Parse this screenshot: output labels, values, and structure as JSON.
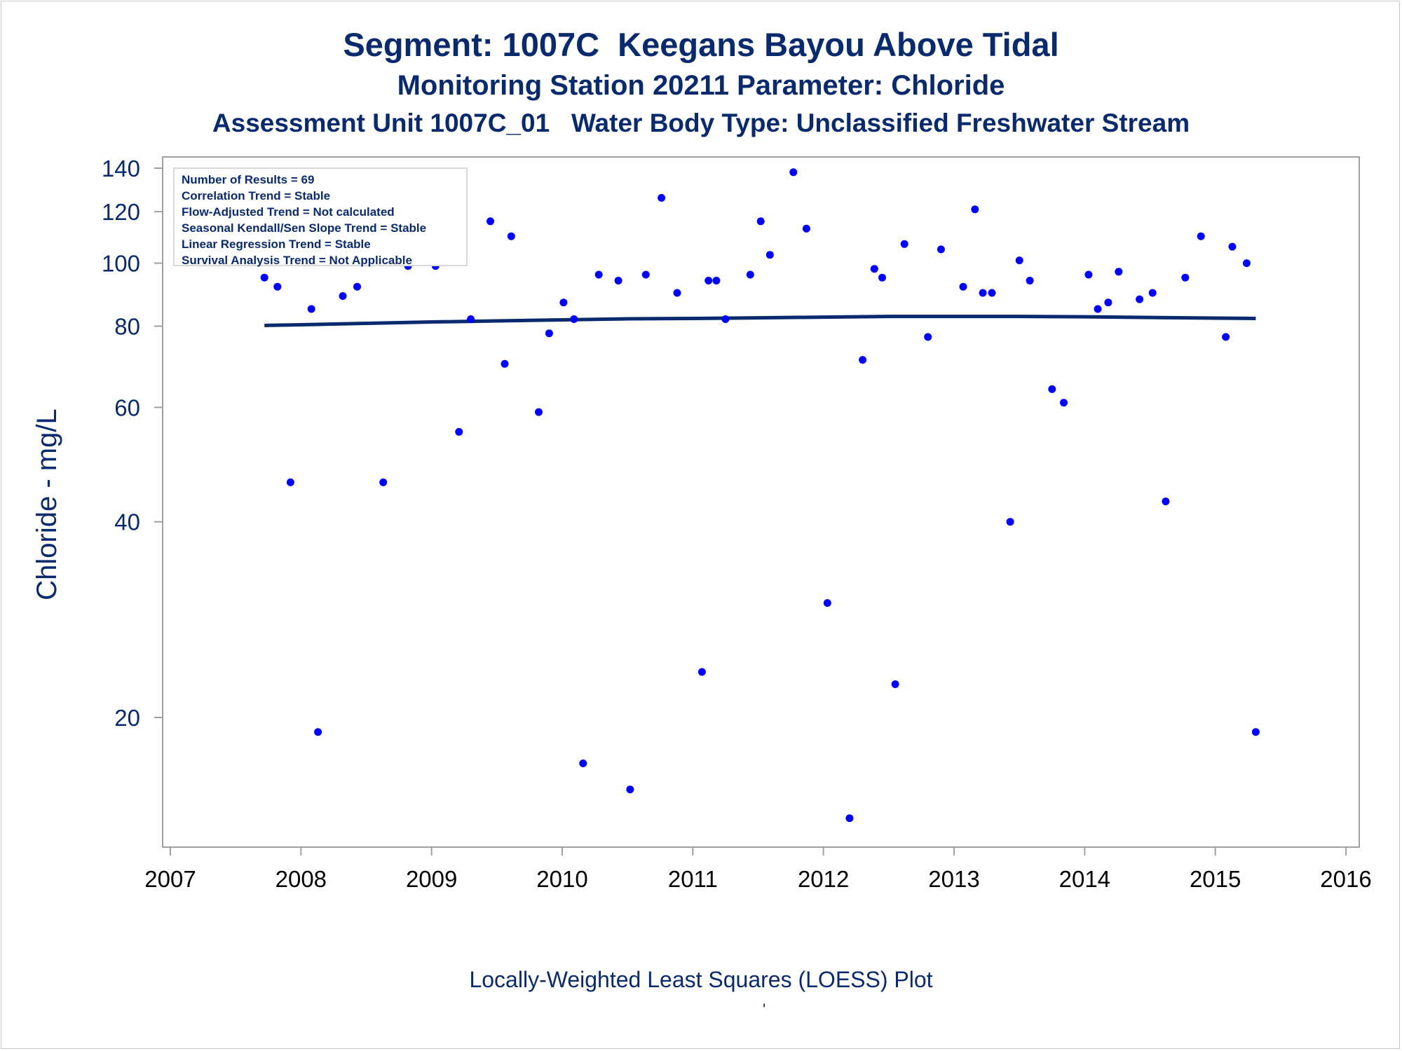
{
  "titles": {
    "line1": "Segment: 1007C  Keegans Bayou Above Tidal",
    "line2": "Monitoring Station 20211 Parameter: Chloride",
    "line3": "Assessment Unit 1007C_01   Water Body Type: Unclassified Freshwater Stream"
  },
  "stats_box": [
    "Number of Results = 69",
    "Correlation Trend = Stable",
    "Flow-Adjusted Trend = Not calculated",
    "Seasonal Kendall/Sen Slope Trend = Stable",
    "Linear Regression Trend = Stable",
    "Survival Analysis Trend = Not Applicable"
  ],
  "footer": {
    "caption": "Locally-Weighted Least Squares (LOESS) Plot",
    "mark": "'"
  },
  "colors": {
    "points": "#0000ff",
    "loess_line": "#0a2a6e",
    "text": "#0a2a6e",
    "axis": "#a0a0a0"
  },
  "chart_data": {
    "type": "scatter",
    "ylabel": "Chloride - mg/L",
    "xlabel": "",
    "y_scale": "log",
    "xlim": [
      2007,
      2016
    ],
    "ylim": [
      13,
      145
    ],
    "x_ticks": [
      "2007",
      "2008",
      "2009",
      "2010",
      "2011",
      "2012",
      "2013",
      "2014",
      "2015",
      "2016"
    ],
    "y_ticks": [
      20,
      40,
      60,
      80,
      100,
      120,
      140
    ],
    "grid": false,
    "series": [
      {
        "type": "scatter",
        "points": [
          [
            2007.72,
            95
          ],
          [
            2007.82,
            92
          ],
          [
            2007.92,
            46
          ],
          [
            2008.08,
            85
          ],
          [
            2008.13,
            19
          ],
          [
            2008.23,
            105
          ],
          [
            2008.32,
            89
          ],
          [
            2008.43,
            92
          ],
          [
            2008.63,
            46
          ],
          [
            2008.77,
            106
          ],
          [
            2008.82,
            99
          ],
          [
            2008.92,
            113
          ],
          [
            2009.03,
            99
          ],
          [
            2009.21,
            55
          ],
          [
            2009.3,
            82
          ],
          [
            2009.45,
            116
          ],
          [
            2009.56,
            70
          ],
          [
            2009.61,
            110
          ],
          [
            2009.82,
            59
          ],
          [
            2009.9,
            78
          ],
          [
            2010.01,
            87
          ],
          [
            2010.09,
            82
          ],
          [
            2010.16,
            17
          ],
          [
            2010.28,
            96
          ],
          [
            2010.43,
            94
          ],
          [
            2010.52,
            15.5
          ],
          [
            2010.64,
            96
          ],
          [
            2010.76,
            126
          ],
          [
            2010.88,
            90
          ],
          [
            2011.07,
            23.5
          ],
          [
            2011.12,
            94
          ],
          [
            2011.18,
            94
          ],
          [
            2011.25,
            82
          ],
          [
            2011.44,
            96
          ],
          [
            2011.52,
            116
          ],
          [
            2011.59,
            103
          ],
          [
            2011.77,
            138
          ],
          [
            2011.87,
            113
          ],
          [
            2012.03,
            30
          ],
          [
            2012.2,
            14
          ],
          [
            2012.3,
            71
          ],
          [
            2012.39,
            98
          ],
          [
            2012.45,
            95
          ],
          [
            2012.55,
            22.5
          ],
          [
            2012.62,
            107
          ],
          [
            2012.8,
            77
          ],
          [
            2012.9,
            105
          ],
          [
            2013.07,
            92
          ],
          [
            2013.16,
            121
          ],
          [
            2013.22,
            90
          ],
          [
            2013.29,
            90
          ],
          [
            2013.43,
            40
          ],
          [
            2013.5,
            101
          ],
          [
            2013.58,
            94
          ],
          [
            2013.75,
            64
          ],
          [
            2013.84,
            61
          ],
          [
            2014.03,
            96
          ],
          [
            2014.1,
            85
          ],
          [
            2014.18,
            87
          ],
          [
            2014.26,
            97
          ],
          [
            2014.42,
            88
          ],
          [
            2014.52,
            90
          ],
          [
            2014.62,
            43
          ],
          [
            2014.77,
            95
          ],
          [
            2014.89,
            110
          ],
          [
            2015.08,
            77
          ],
          [
            2015.13,
            106
          ],
          [
            2015.24,
            100
          ],
          [
            2015.31,
            19
          ]
        ]
      },
      {
        "type": "line",
        "points": [
          [
            2007.72,
            80.2
          ],
          [
            2008.0,
            80.4
          ],
          [
            2008.5,
            80.8
          ],
          [
            2009.0,
            81.2
          ],
          [
            2009.5,
            81.5
          ],
          [
            2010.0,
            81.8
          ],
          [
            2010.5,
            82.1
          ],
          [
            2011.0,
            82.2
          ],
          [
            2011.5,
            82.4
          ],
          [
            2012.0,
            82.6
          ],
          [
            2012.5,
            82.8
          ],
          [
            2013.0,
            82.8
          ],
          [
            2013.5,
            82.8
          ],
          [
            2014.0,
            82.7
          ],
          [
            2014.5,
            82.5
          ],
          [
            2015.0,
            82.3
          ],
          [
            2015.31,
            82.2
          ]
        ]
      }
    ]
  }
}
